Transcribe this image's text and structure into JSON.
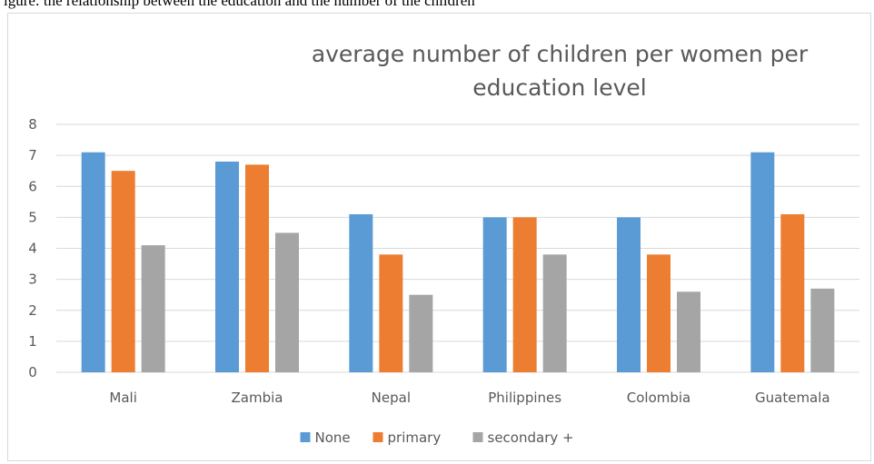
{
  "header_fragment": "igure: the relationship between the education and the number of the children",
  "chart_data": {
    "type": "bar",
    "title_lines": [
      "average number of children per women per",
      "education level"
    ],
    "categories": [
      "Mali",
      "Zambia",
      "Nepal",
      "Philippines",
      "Colombia",
      "Guatemala"
    ],
    "series": [
      {
        "name": "None",
        "color": "#5b9bd5",
        "values": [
          7.1,
          6.8,
          5.1,
          5.0,
          5.0,
          7.1
        ]
      },
      {
        "name": "primary",
        "color": "#ed7d31",
        "values": [
          6.5,
          6.7,
          3.8,
          5.0,
          3.8,
          5.1
        ]
      },
      {
        "name": "secondary +",
        "color": "#a5a5a5",
        "values": [
          4.1,
          4.5,
          2.5,
          3.8,
          2.6,
          2.7
        ]
      }
    ],
    "y_ticks": [
      "0",
      "1",
      "2",
      "3",
      "4",
      "5",
      "6",
      "7",
      "8"
    ],
    "ylim": [
      0,
      8
    ],
    "grid": true,
    "legend_position": "bottom"
  }
}
